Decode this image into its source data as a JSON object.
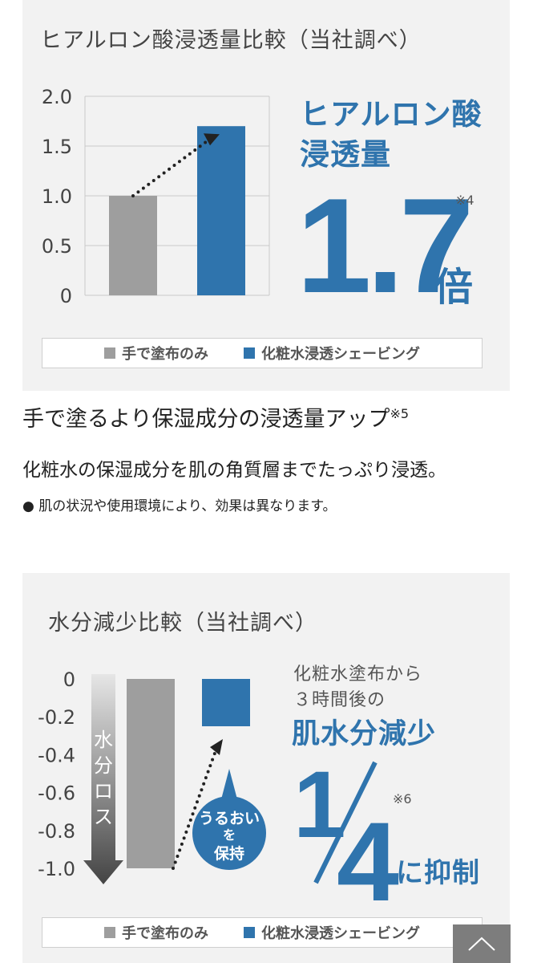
{
  "chart_data": [
    {
      "type": "bar",
      "title": "ヒアルロン酸浸透量比較（当社調べ）",
      "categories": [
        "手で塗布のみ",
        "化粧水浸透シェービング"
      ],
      "values": [
        1.0,
        1.7
      ],
      "ylim": [
        0,
        2.0
      ],
      "yticks": [
        "2.0",
        "1.5",
        "1.0",
        "0.5",
        "0"
      ],
      "grid": true,
      "legend": [
        "手で塗布のみ",
        "化粧水浸透シェービング"
      ],
      "colors": [
        "#9e9e9e",
        "#2f74ad"
      ],
      "callout": {
        "heading_line1": "ヒアルロン酸",
        "heading_line2": "浸透量",
        "value": "1.7",
        "unit": "倍",
        "note": "※4"
      }
    },
    {
      "type": "bar",
      "title": "水分減少比較（当社調べ）",
      "categories": [
        "手で塗布のみ",
        "化粧水浸透シェービング"
      ],
      "values": [
        -1.0,
        -0.25
      ],
      "ylim": [
        -1.0,
        0
      ],
      "yticks": [
        "0",
        "-0.2",
        "-0.4",
        "-0.6",
        "-0.8",
        "-1.0"
      ],
      "grid": false,
      "legend": [
        "手で塗布のみ",
        "化粧水浸透シェービング"
      ],
      "colors": [
        "#9e9e9e",
        "#2f74ad"
      ],
      "arrow_label": [
        "水",
        "分",
        "ロ",
        "ス"
      ],
      "bubble": [
        "うるおい",
        "を",
        "保持"
      ],
      "callout": {
        "line1": "化粧水塗布から",
        "line2": "３時間後の",
        "heading": "肌水分減少",
        "numerator": "1",
        "denominator": "4",
        "unit": "に抑制",
        "note": "※6"
      }
    }
  ],
  "copy": {
    "headline": "手で塗るより保湿成分の浸透量アップ",
    "headline_note": "※5",
    "body": "化粧水の保湿成分を肌の角質層までたっぷり浸透。",
    "bullet": "●",
    "caveat": "肌の状況や使用環境により、効果は異なります。"
  },
  "scroll_top_icon": "chevron-up-icon"
}
